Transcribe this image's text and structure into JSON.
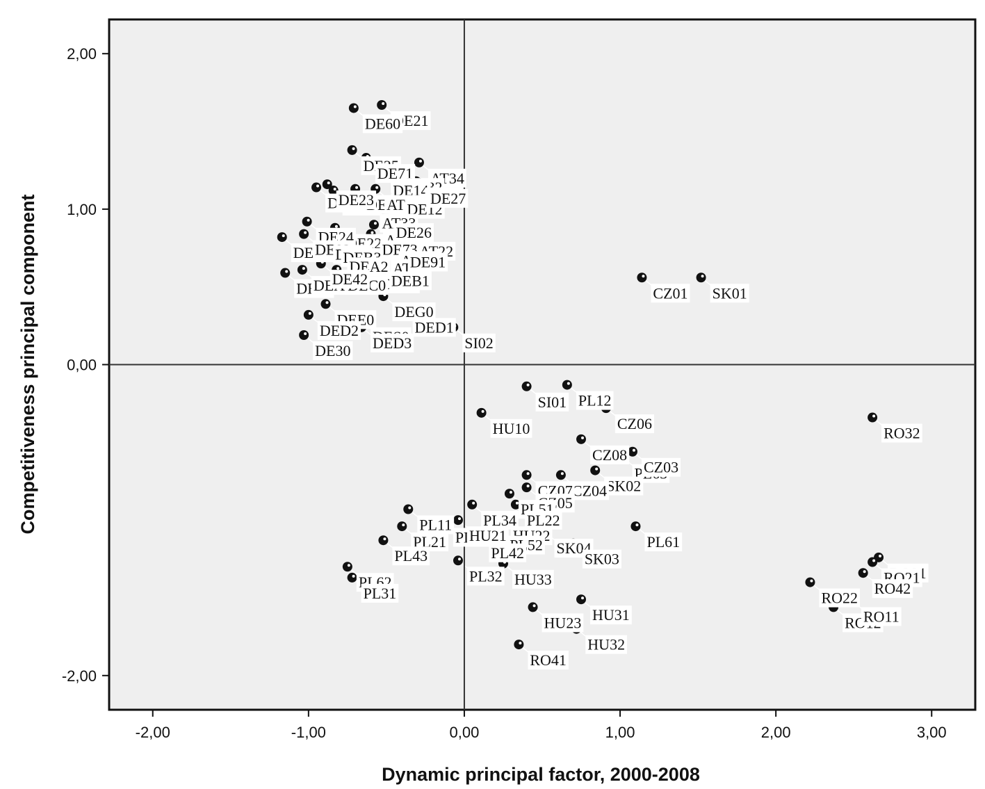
{
  "chart_data": {
    "type": "scatter",
    "title": "",
    "xlabel": "Dynamic principal factor, 2000-2008",
    "ylabel": "Competitiveness principal component",
    "xlim": [
      -2.28,
      3.28
    ],
    "ylim": [
      -2.22,
      2.22
    ],
    "x_ticks": [
      -2,
      -1,
      0,
      1,
      2,
      3
    ],
    "y_ticks": [
      -2,
      0,
      1,
      2
    ],
    "x_tick_labels": [
      "-2,00",
      "-1,00",
      "0,00",
      "1,00",
      "2,00",
      "3,00"
    ],
    "y_tick_labels": [
      "-2,00",
      "0,00",
      "1,00",
      "2,00"
    ],
    "reference_lines": {
      "x": 0,
      "y": 0
    },
    "grid": false,
    "colors": {
      "plot_background": "#efefef",
      "marker": "#111111",
      "reference_line": "#333333",
      "leader_line": "#ffffff"
    },
    "points": [
      {
        "label": "DE21",
        "x": -0.53,
        "y": 1.67
      },
      {
        "label": "DE60",
        "x": -0.71,
        "y": 1.65
      },
      {
        "label": "DE11",
        "x": -0.84,
        "y": 1.12
      },
      {
        "label": "DE25",
        "x": -0.72,
        "y": 1.38
      },
      {
        "label": "DE71",
        "x": -0.63,
        "y": 1.33
      },
      {
        "label": "AT34",
        "x": -0.29,
        "y": 1.3
      },
      {
        "label": "AT32",
        "x": -0.43,
        "y": 1.24
      },
      {
        "label": "DE14",
        "x": -0.53,
        "y": 1.22
      },
      {
        "label": "AT13",
        "x": -0.31,
        "y": 1.18
      },
      {
        "label": "DE13",
        "x": -0.95,
        "y": 1.14
      },
      {
        "label": "DEA4",
        "x": -0.7,
        "y": 1.13
      },
      {
        "label": "AT31",
        "x": -0.57,
        "y": 1.13
      },
      {
        "label": "DE23",
        "x": -0.88,
        "y": 1.16
      },
      {
        "label": "DE12",
        "x": -0.44,
        "y": 1.1
      },
      {
        "label": "DE27",
        "x": -0.29,
        "y": 1.17
      },
      {
        "label": "AT33",
        "x": -0.6,
        "y": 1.01
      },
      {
        "label": "AT12",
        "x": -0.58,
        "y": 0.9
      },
      {
        "label": "DE22",
        "x": -0.83,
        "y": 0.88
      },
      {
        "label": "DE26",
        "x": -0.51,
        "y": 0.95
      },
      {
        "label": "DE24",
        "x": -1.01,
        "y": 0.92
      },
      {
        "label": "DEA1",
        "x": -1.17,
        "y": 0.82
      },
      {
        "label": "DE93",
        "x": -1.03,
        "y": 0.84
      },
      {
        "label": "AT22",
        "x": -0.36,
        "y": 0.83
      },
      {
        "label": "DE73",
        "x": -0.6,
        "y": 0.84
      },
      {
        "label": "AT21",
        "x": -0.48,
        "y": 0.77
      },
      {
        "label": "DE72",
        "x": -0.9,
        "y": 0.81
      },
      {
        "label": "DEB3",
        "x": -0.85,
        "y": 0.79
      },
      {
        "label": "DEA2",
        "x": -0.81,
        "y": 0.73
      },
      {
        "label": "AT11",
        "x": -0.53,
        "y": 0.72
      },
      {
        "label": "DE91",
        "x": -0.42,
        "y": 0.76
      },
      {
        "label": "DE92",
        "x": -0.6,
        "y": 0.62
      },
      {
        "label": "DEB1",
        "x": -0.54,
        "y": 0.64
      },
      {
        "label": "DE94",
        "x": -1.15,
        "y": 0.59
      },
      {
        "label": "DEA5",
        "x": -1.04,
        "y": 0.61
      },
      {
        "label": "DEC0",
        "x": -0.82,
        "y": 0.61
      },
      {
        "label": "DE42",
        "x": -0.92,
        "y": 0.65
      },
      {
        "label": "DEG0",
        "x": -0.52,
        "y": 0.44
      },
      {
        "label": "DEE0",
        "x": -0.89,
        "y": 0.39
      },
      {
        "label": "DED1",
        "x": -0.39,
        "y": 0.34
      },
      {
        "label": "SI02",
        "x": -0.07,
        "y": 0.24
      },
      {
        "label": "DE30",
        "x": -1.03,
        "y": 0.19
      },
      {
        "label": "DED2",
        "x": -1.0,
        "y": 0.32
      },
      {
        "label": "DES0",
        "x": -0.66,
        "y": 0.28
      },
      {
        "label": "DED3",
        "x": -0.66,
        "y": 0.24
      },
      {
        "label": "CZ01",
        "x": 1.14,
        "y": 0.56
      },
      {
        "label": "SK01",
        "x": 1.52,
        "y": 0.56
      },
      {
        "label": "PL12",
        "x": 0.66,
        "y": -0.13
      },
      {
        "label": "SI01",
        "x": 0.4,
        "y": -0.14
      },
      {
        "label": "HU10",
        "x": 0.11,
        "y": -0.31
      },
      {
        "label": "CZ06",
        "x": 0.91,
        "y": -0.28
      },
      {
        "label": "RO32",
        "x": 2.62,
        "y": -0.34
      },
      {
        "label": "CZ08",
        "x": 0.75,
        "y": -0.48
      },
      {
        "label": "PL63",
        "x": 1.02,
        "y": -0.6
      },
      {
        "label": "CZ03",
        "x": 1.08,
        "y": -0.56
      },
      {
        "label": "SK02",
        "x": 0.84,
        "y": -0.68
      },
      {
        "label": "CZ04",
        "x": 0.62,
        "y": -0.71
      },
      {
        "label": "CZ07",
        "x": 0.4,
        "y": -0.71
      },
      {
        "label": "CZ05",
        "x": 0.4,
        "y": -0.79
      },
      {
        "label": "PL51",
        "x": 0.29,
        "y": -0.83
      },
      {
        "label": "PL22",
        "x": 0.33,
        "y": -0.9
      },
      {
        "label": "PL34",
        "x": 0.05,
        "y": -0.9
      },
      {
        "label": "PL11",
        "x": -0.36,
        "y": -0.93
      },
      {
        "label": "HU22",
        "x": 0.24,
        "y": -1.0
      },
      {
        "label": "PL61",
        "x": 1.1,
        "y": -1.04
      },
      {
        "label": "PL33",
        "x": -0.13,
        "y": -1.01
      },
      {
        "label": "HU21",
        "x": -0.04,
        "y": -1.0
      },
      {
        "label": "PL52",
        "x": 0.22,
        "y": -1.06
      },
      {
        "label": "SK04",
        "x": 0.52,
        "y": -1.08
      },
      {
        "label": "SK03",
        "x": 0.7,
        "y": -1.15
      },
      {
        "label": "PL21",
        "x": -0.4,
        "y": -1.04
      },
      {
        "label": "PL43",
        "x": -0.52,
        "y": -1.13
      },
      {
        "label": "PL62",
        "x": -0.75,
        "y": -1.3
      },
      {
        "label": "PL31",
        "x": -0.72,
        "y": -1.37
      },
      {
        "label": "PL32",
        "x": -0.04,
        "y": -1.26
      },
      {
        "label": "PL42",
        "x": 0.1,
        "y": -1.11
      },
      {
        "label": "HU33",
        "x": 0.25,
        "y": -1.28
      },
      {
        "label": "HU23",
        "x": 0.44,
        "y": -1.56
      },
      {
        "label": "HU31",
        "x": 0.75,
        "y": -1.51
      },
      {
        "label": "HU32",
        "x": 0.72,
        "y": -1.7
      },
      {
        "label": "RO41",
        "x": 0.35,
        "y": -1.8
      },
      {
        "label": "RO31",
        "x": 2.66,
        "y": -1.24
      },
      {
        "label": "RO21",
        "x": 2.62,
        "y": -1.27
      },
      {
        "label": "RO42",
        "x": 2.56,
        "y": -1.34
      },
      {
        "label": "RO22",
        "x": 2.22,
        "y": -1.4
      },
      {
        "label": "RO12",
        "x": 2.37,
        "y": -1.56
      },
      {
        "label": "RO11",
        "x": 2.49,
        "y": -1.52
      }
    ]
  }
}
